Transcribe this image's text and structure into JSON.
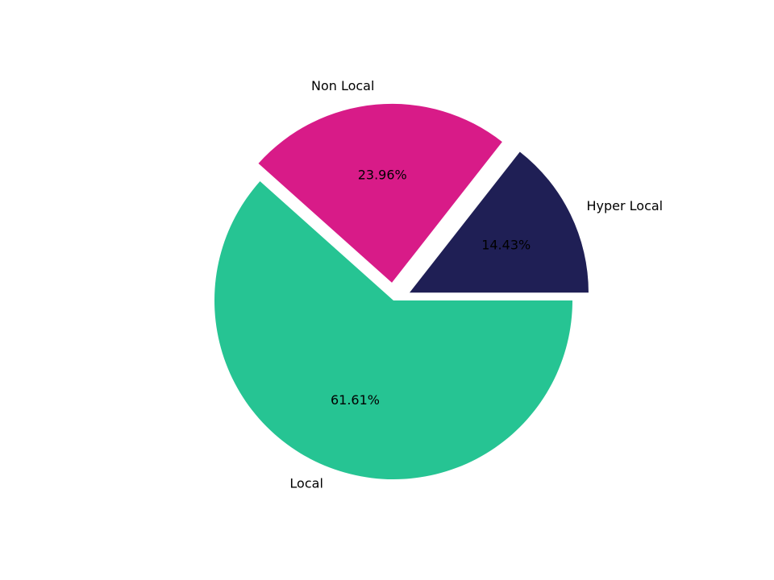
{
  "chart_data": {
    "type": "pie",
    "categories": [
      "Hyper Local",
      "Non Local",
      "Local"
    ],
    "values": [
      14.43,
      23.96,
      61.61
    ],
    "value_labels": [
      "14.43%",
      "23.96%",
      "61.61%"
    ],
    "colors": [
      "#1f1f55",
      "#d81b88",
      "#26c493"
    ],
    "explode": [
      0.1,
      0.1,
      0
    ]
  }
}
